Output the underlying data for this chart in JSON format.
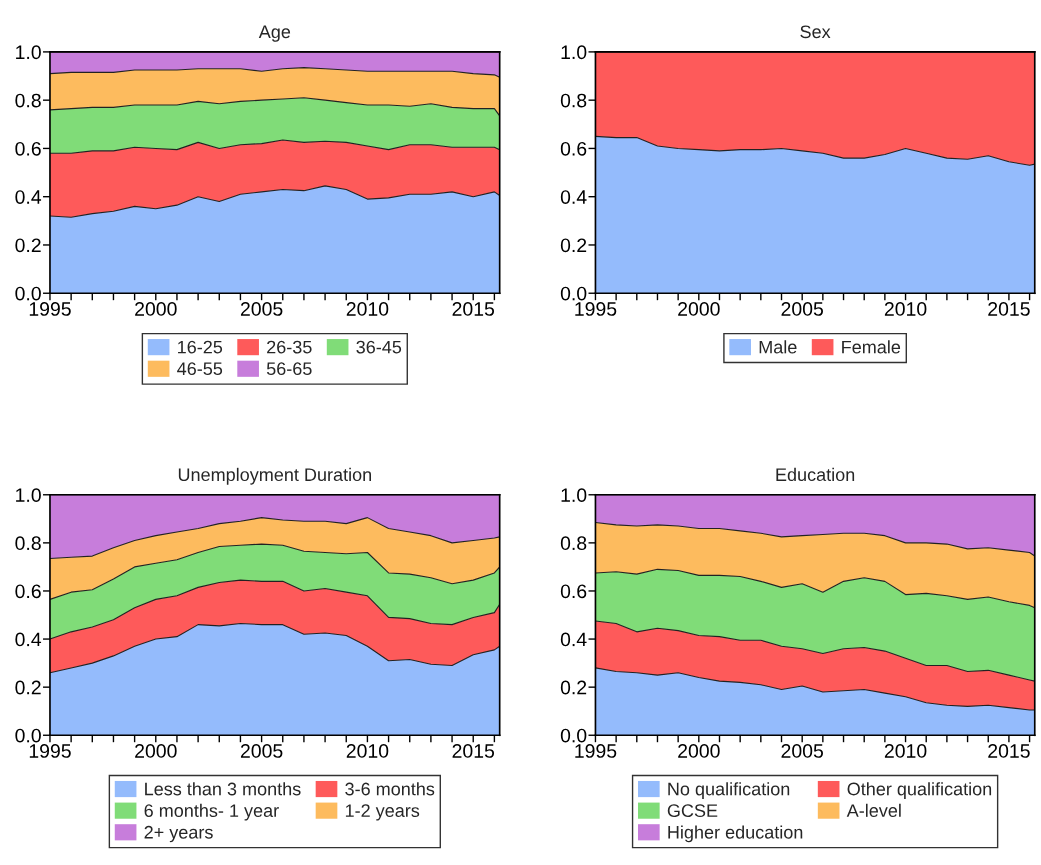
{
  "chart_data": [
    {
      "type": "area",
      "title": "Age",
      "stacked": true,
      "legend": "bottom",
      "x": [
        1995,
        1996,
        1997,
        1998,
        1999,
        2000,
        2001,
        2002,
        2003,
        2004,
        2005,
        2006,
        2007,
        2008,
        2009,
        2010,
        2011,
        2012,
        2013,
        2014,
        2015,
        2016,
        2016.25
      ],
      "xlim": [
        1995,
        2016.25
      ],
      "xticks": [
        {
          "value": 1995,
          "label": "1995"
        },
        {
          "value": 1996,
          "label": null
        },
        {
          "value": 1997,
          "label": null
        },
        {
          "value": 1998,
          "label": null
        },
        {
          "value": 1999,
          "label": null
        },
        {
          "value": 2000,
          "label": "2000"
        },
        {
          "value": 2001,
          "label": null
        },
        {
          "value": 2002,
          "label": null
        },
        {
          "value": 2003,
          "label": null
        },
        {
          "value": 2004,
          "label": null
        },
        {
          "value": 2005,
          "label": "2005"
        },
        {
          "value": 2006,
          "label": null
        },
        {
          "value": 2007,
          "label": null
        },
        {
          "value": 2008,
          "label": null
        },
        {
          "value": 2009,
          "label": null
        },
        {
          "value": 2010,
          "label": "2010"
        },
        {
          "value": 2011,
          "label": null
        },
        {
          "value": 2012,
          "label": null
        },
        {
          "value": 2013,
          "label": null
        },
        {
          "value": 2014,
          "label": null
        },
        {
          "value": 2015,
          "label": "2015"
        },
        {
          "value": 2016,
          "label": null
        }
      ],
      "ylim": [
        0,
        1
      ],
      "yticks": [
        {
          "value": 0,
          "label": "0.0"
        },
        {
          "value": 0.2,
          "label": "0.2"
        },
        {
          "value": 0.4,
          "label": "0.4"
        },
        {
          "value": 0.6,
          "label": "0.6"
        },
        {
          "value": 0.8,
          "label": "0.8"
        },
        {
          "value": 1,
          "label": "1.0"
        }
      ],
      "series": [
        {
          "name": "16-25",
          "color": "#94bbfc",
          "values": [
            0.32,
            0.315,
            0.33,
            0.34,
            0.36,
            0.35,
            0.365,
            0.4,
            0.38,
            0.41,
            0.42,
            0.43,
            0.425,
            0.445,
            0.43,
            0.39,
            0.395,
            0.41,
            0.41,
            0.42,
            0.4,
            0.42,
            0.405
          ]
        },
        {
          "name": "26-35",
          "color": "#fe5a5a",
          "values": [
            0.26,
            0.265,
            0.26,
            0.25,
            0.245,
            0.25,
            0.23,
            0.225,
            0.22,
            0.205,
            0.2,
            0.205,
            0.2,
            0.185,
            0.195,
            0.22,
            0.2,
            0.205,
            0.205,
            0.185,
            0.205,
            0.185,
            0.19
          ]
        },
        {
          "name": "36-45",
          "color": "#80dc78",
          "values": [
            0.18,
            0.185,
            0.18,
            0.18,
            0.175,
            0.18,
            0.185,
            0.17,
            0.185,
            0.18,
            0.18,
            0.17,
            0.185,
            0.17,
            0.165,
            0.17,
            0.185,
            0.16,
            0.17,
            0.165,
            0.16,
            0.16,
            0.14
          ]
        },
        {
          "name": "46-55",
          "color": "#fdbb5e",
          "values": [
            0.15,
            0.15,
            0.145,
            0.145,
            0.145,
            0.145,
            0.145,
            0.135,
            0.145,
            0.135,
            0.12,
            0.125,
            0.125,
            0.13,
            0.135,
            0.14,
            0.14,
            0.145,
            0.135,
            0.15,
            0.145,
            0.14,
            0.16
          ]
        },
        {
          "name": "56-65",
          "color": "#c77ddb",
          "values": [
            0.09,
            0.085,
            0.085,
            0.085,
            0.075,
            0.075,
            0.075,
            0.07,
            0.07,
            0.07,
            0.08,
            0.07,
            0.065,
            0.07,
            0.075,
            0.08,
            0.08,
            0.08,
            0.08,
            0.08,
            0.09,
            0.095,
            0.105
          ]
        }
      ]
    },
    {
      "type": "area",
      "title": "Sex",
      "stacked": true,
      "legend": "bottom",
      "x": [
        1995,
        1996,
        1997,
        1998,
        1999,
        2000,
        2001,
        2002,
        2003,
        2004,
        2005,
        2006,
        2007,
        2008,
        2009,
        2010,
        2011,
        2012,
        2013,
        2014,
        2015,
        2016,
        2016.25
      ],
      "xlim": [
        1995,
        2016.25
      ],
      "xticks": [
        {
          "value": 1995,
          "label": "1995"
        },
        {
          "value": 1996,
          "label": null
        },
        {
          "value": 1997,
          "label": null
        },
        {
          "value": 1998,
          "label": null
        },
        {
          "value": 1999,
          "label": null
        },
        {
          "value": 2000,
          "label": "2000"
        },
        {
          "value": 2001,
          "label": null
        },
        {
          "value": 2002,
          "label": null
        },
        {
          "value": 2003,
          "label": null
        },
        {
          "value": 2004,
          "label": null
        },
        {
          "value": 2005,
          "label": "2005"
        },
        {
          "value": 2006,
          "label": null
        },
        {
          "value": 2007,
          "label": null
        },
        {
          "value": 2008,
          "label": null
        },
        {
          "value": 2009,
          "label": null
        },
        {
          "value": 2010,
          "label": "2010"
        },
        {
          "value": 2011,
          "label": null
        },
        {
          "value": 2012,
          "label": null
        },
        {
          "value": 2013,
          "label": null
        },
        {
          "value": 2014,
          "label": null
        },
        {
          "value": 2015,
          "label": "2015"
        },
        {
          "value": 2016,
          "label": null
        }
      ],
      "ylim": [
        0,
        1
      ],
      "yticks": [
        {
          "value": 0,
          "label": "0.0"
        },
        {
          "value": 0.2,
          "label": "0.2"
        },
        {
          "value": 0.4,
          "label": "0.4"
        },
        {
          "value": 0.6,
          "label": "0.6"
        },
        {
          "value": 0.8,
          "label": "0.8"
        },
        {
          "value": 1,
          "label": "1.0"
        }
      ],
      "series": [
        {
          "name": "Male",
          "color": "#94bbfc",
          "values": [
            0.65,
            0.645,
            0.645,
            0.61,
            0.6,
            0.595,
            0.59,
            0.595,
            0.595,
            0.6,
            0.59,
            0.58,
            0.56,
            0.56,
            0.575,
            0.6,
            0.58,
            0.56,
            0.555,
            0.57,
            0.545,
            0.53,
            0.535
          ]
        },
        {
          "name": "Female",
          "color": "#fe5a5a",
          "values": [
            0.35,
            0.355,
            0.355,
            0.39,
            0.4,
            0.405,
            0.41,
            0.405,
            0.405,
            0.4,
            0.41,
            0.42,
            0.44,
            0.44,
            0.425,
            0.4,
            0.42,
            0.44,
            0.445,
            0.43,
            0.455,
            0.47,
            0.465
          ]
        }
      ]
    },
    {
      "type": "area",
      "title": "Unemployment Duration",
      "stacked": true,
      "legend": "bottom",
      "x": [
        1995,
        1996,
        1997,
        1998,
        1999,
        2000,
        2001,
        2002,
        2003,
        2004,
        2005,
        2006,
        2007,
        2008,
        2009,
        2010,
        2011,
        2012,
        2013,
        2014,
        2015,
        2016,
        2016.25
      ],
      "xlim": [
        1995,
        2016.25
      ],
      "xticks": [
        {
          "value": 1995,
          "label": "1995"
        },
        {
          "value": 1996,
          "label": null
        },
        {
          "value": 1997,
          "label": null
        },
        {
          "value": 1998,
          "label": null
        },
        {
          "value": 1999,
          "label": null
        },
        {
          "value": 2000,
          "label": "2000"
        },
        {
          "value": 2001,
          "label": null
        },
        {
          "value": 2002,
          "label": null
        },
        {
          "value": 2003,
          "label": null
        },
        {
          "value": 2004,
          "label": null
        },
        {
          "value": 2005,
          "label": "2005"
        },
        {
          "value": 2006,
          "label": null
        },
        {
          "value": 2007,
          "label": null
        },
        {
          "value": 2008,
          "label": null
        },
        {
          "value": 2009,
          "label": null
        },
        {
          "value": 2010,
          "label": "2010"
        },
        {
          "value": 2011,
          "label": null
        },
        {
          "value": 2012,
          "label": null
        },
        {
          "value": 2013,
          "label": null
        },
        {
          "value": 2014,
          "label": null
        },
        {
          "value": 2015,
          "label": "2015"
        },
        {
          "value": 2016,
          "label": null
        }
      ],
      "ylim": [
        0,
        1
      ],
      "yticks": [
        {
          "value": 0,
          "label": "0.0"
        },
        {
          "value": 0.2,
          "label": "0.2"
        },
        {
          "value": 0.4,
          "label": "0.4"
        },
        {
          "value": 0.6,
          "label": "0.6"
        },
        {
          "value": 0.8,
          "label": "0.8"
        },
        {
          "value": 1,
          "label": "1.0"
        }
      ],
      "series": [
        {
          "name": "Less than 3 months",
          "color": "#94bbfc",
          "values": [
            0.26,
            0.28,
            0.3,
            0.33,
            0.37,
            0.4,
            0.41,
            0.46,
            0.455,
            0.465,
            0.46,
            0.46,
            0.42,
            0.425,
            0.415,
            0.37,
            0.31,
            0.315,
            0.295,
            0.29,
            0.335,
            0.355,
            0.37
          ]
        },
        {
          "name": "3-6 months",
          "color": "#fe5a5a",
          "values": [
            0.14,
            0.15,
            0.15,
            0.15,
            0.16,
            0.165,
            0.17,
            0.155,
            0.18,
            0.18,
            0.18,
            0.18,
            0.18,
            0.185,
            0.18,
            0.21,
            0.18,
            0.17,
            0.17,
            0.17,
            0.155,
            0.155,
            0.175
          ]
        },
        {
          "name": "6 months- 1 year",
          "color": "#80dc78",
          "values": [
            0.165,
            0.165,
            0.155,
            0.17,
            0.17,
            0.15,
            0.15,
            0.145,
            0.15,
            0.145,
            0.155,
            0.15,
            0.165,
            0.15,
            0.16,
            0.18,
            0.185,
            0.185,
            0.19,
            0.17,
            0.155,
            0.165,
            0.155
          ]
        },
        {
          "name": "1-2 years",
          "color": "#fdbb5e",
          "values": [
            0.17,
            0.145,
            0.14,
            0.13,
            0.11,
            0.115,
            0.115,
            0.1,
            0.095,
            0.1,
            0.11,
            0.105,
            0.125,
            0.13,
            0.125,
            0.145,
            0.185,
            0.175,
            0.175,
            0.17,
            0.165,
            0.145,
            0.125
          ]
        },
        {
          "name": "2+ years",
          "color": "#c77ddb",
          "values": [
            0.265,
            0.26,
            0.255,
            0.22,
            0.19,
            0.17,
            0.155,
            0.14,
            0.12,
            0.11,
            0.095,
            0.105,
            0.11,
            0.11,
            0.12,
            0.095,
            0.14,
            0.155,
            0.17,
            0.2,
            0.19,
            0.18,
            0.175
          ]
        }
      ]
    },
    {
      "type": "area",
      "title": "Education",
      "stacked": true,
      "legend": "bottom",
      "x": [
        1995,
        1996,
        1997,
        1998,
        1999,
        2000,
        2001,
        2002,
        2003,
        2004,
        2005,
        2006,
        2007,
        2008,
        2009,
        2010,
        2011,
        2012,
        2013,
        2014,
        2015,
        2016,
        2016.25
      ],
      "xlim": [
        1995,
        2016.25
      ],
      "xticks": [
        {
          "value": 1995,
          "label": "1995"
        },
        {
          "value": 1996,
          "label": null
        },
        {
          "value": 1997,
          "label": null
        },
        {
          "value": 1998,
          "label": null
        },
        {
          "value": 1999,
          "label": null
        },
        {
          "value": 2000,
          "label": "2000"
        },
        {
          "value": 2001,
          "label": null
        },
        {
          "value": 2002,
          "label": null
        },
        {
          "value": 2003,
          "label": null
        },
        {
          "value": 2004,
          "label": null
        },
        {
          "value": 2005,
          "label": "2005"
        },
        {
          "value": 2006,
          "label": null
        },
        {
          "value": 2007,
          "label": null
        },
        {
          "value": 2008,
          "label": null
        },
        {
          "value": 2009,
          "label": null
        },
        {
          "value": 2010,
          "label": "2010"
        },
        {
          "value": 2011,
          "label": null
        },
        {
          "value": 2012,
          "label": null
        },
        {
          "value": 2013,
          "label": null
        },
        {
          "value": 2014,
          "label": null
        },
        {
          "value": 2015,
          "label": "2015"
        },
        {
          "value": 2016,
          "label": null
        }
      ],
      "ylim": [
        0,
        1
      ],
      "yticks": [
        {
          "value": 0,
          "label": "0.0"
        },
        {
          "value": 0.2,
          "label": "0.2"
        },
        {
          "value": 0.4,
          "label": "0.4"
        },
        {
          "value": 0.6,
          "label": "0.6"
        },
        {
          "value": 0.8,
          "label": "0.8"
        },
        {
          "value": 1,
          "label": "1.0"
        }
      ],
      "series": [
        {
          "name": "No qualification",
          "color": "#94bbfc",
          "values": [
            0.28,
            0.265,
            0.26,
            0.25,
            0.26,
            0.24,
            0.225,
            0.22,
            0.21,
            0.19,
            0.205,
            0.18,
            0.185,
            0.19,
            0.175,
            0.16,
            0.135,
            0.125,
            0.12,
            0.125,
            0.115,
            0.105,
            0.105
          ]
        },
        {
          "name": "Other qualification",
          "color": "#fe5a5a",
          "values": [
            0.195,
            0.2,
            0.17,
            0.195,
            0.175,
            0.175,
            0.185,
            0.175,
            0.185,
            0.18,
            0.155,
            0.16,
            0.175,
            0.175,
            0.175,
            0.16,
            0.155,
            0.165,
            0.145,
            0.145,
            0.135,
            0.125,
            0.12
          ]
        },
        {
          "name": "GCSE",
          "color": "#80dc78",
          "values": [
            0.2,
            0.215,
            0.24,
            0.245,
            0.25,
            0.25,
            0.255,
            0.265,
            0.245,
            0.245,
            0.27,
            0.255,
            0.28,
            0.29,
            0.29,
            0.265,
            0.3,
            0.29,
            0.3,
            0.305,
            0.305,
            0.31,
            0.305
          ]
        },
        {
          "name": "A-level",
          "color": "#fdbb5e",
          "values": [
            0.21,
            0.195,
            0.2,
            0.185,
            0.185,
            0.195,
            0.195,
            0.19,
            0.2,
            0.21,
            0.2,
            0.24,
            0.2,
            0.185,
            0.19,
            0.215,
            0.21,
            0.215,
            0.21,
            0.205,
            0.215,
            0.22,
            0.215
          ]
        },
        {
          "name": "Higher education",
          "color": "#c77ddb",
          "values": [
            0.115,
            0.125,
            0.13,
            0.125,
            0.13,
            0.14,
            0.14,
            0.15,
            0.16,
            0.175,
            0.17,
            0.165,
            0.16,
            0.16,
            0.17,
            0.2,
            0.2,
            0.205,
            0.225,
            0.22,
            0.23,
            0.24,
            0.255
          ]
        }
      ]
    }
  ]
}
